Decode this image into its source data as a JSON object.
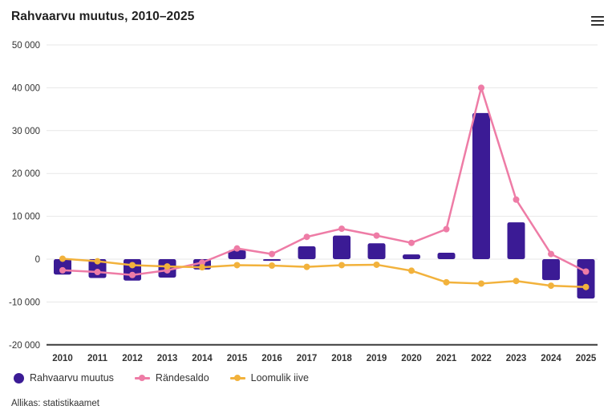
{
  "header": {
    "title": "Rahvaarvu muutus, 2010–2025"
  },
  "footer": {
    "source": "Allikas: statistikaamet"
  },
  "colors": {
    "column": "#3b1b95",
    "migration": "#ee7ca6",
    "natural": "#f2b23c",
    "grid": "#e7e7e7",
    "axis": "#3c3c3c",
    "text": "#333333"
  },
  "chart_data": {
    "type": "combo",
    "title": "Rahvaarvu muutus, 2010–2025",
    "categories": [
      "2010",
      "2011",
      "2012",
      "2013",
      "2014",
      "2015",
      "2016",
      "2017",
      "2018",
      "2019",
      "2020",
      "2021",
      "2022",
      "2023",
      "2024",
      "2025"
    ],
    "series": [
      {
        "name": "Rahvaarvu muutus",
        "type": "column",
        "color": "#3b1b95",
        "values": [
          -3600,
          -4400,
          -5000,
          -4300,
          -2400,
          2100,
          -400,
          3000,
          5500,
          3700,
          1100,
          1500,
          34100,
          8600,
          -4900,
          -9200
        ]
      },
      {
        "name": "Rändesaldo",
        "type": "line",
        "color": "#ee7ca6",
        "values": [
          -2600,
          -3000,
          -3700,
          -2600,
          -800,
          2500,
          1200,
          5200,
          7100,
          5500,
          3800,
          7000,
          40000,
          13900,
          1200,
          -2900
        ]
      },
      {
        "name": "Loomulik iive",
        "type": "line",
        "color": "#f2b23c",
        "values": [
          100,
          -500,
          -1400,
          -1700,
          -1900,
          -1400,
          -1500,
          -1800,
          -1400,
          -1300,
          -2700,
          -5400,
          -5700,
          -5100,
          -6200,
          -6500
        ]
      }
    ],
    "ylim": [
      -20000,
      50000
    ],
    "y_ticks": [
      {
        "value": 50000,
        "label": "50 000"
      },
      {
        "value": 40000,
        "label": "40 000"
      },
      {
        "value": 30000,
        "label": "30 000"
      },
      {
        "value": 20000,
        "label": "20 000"
      },
      {
        "value": 10000,
        "label": "10 000"
      },
      {
        "value": 0,
        "label": "0"
      },
      {
        "value": -10000,
        "label": "-10 000"
      },
      {
        "value": -20000,
        "label": "-20 000"
      }
    ],
    "grid": true,
    "legend_position": "bottom"
  }
}
